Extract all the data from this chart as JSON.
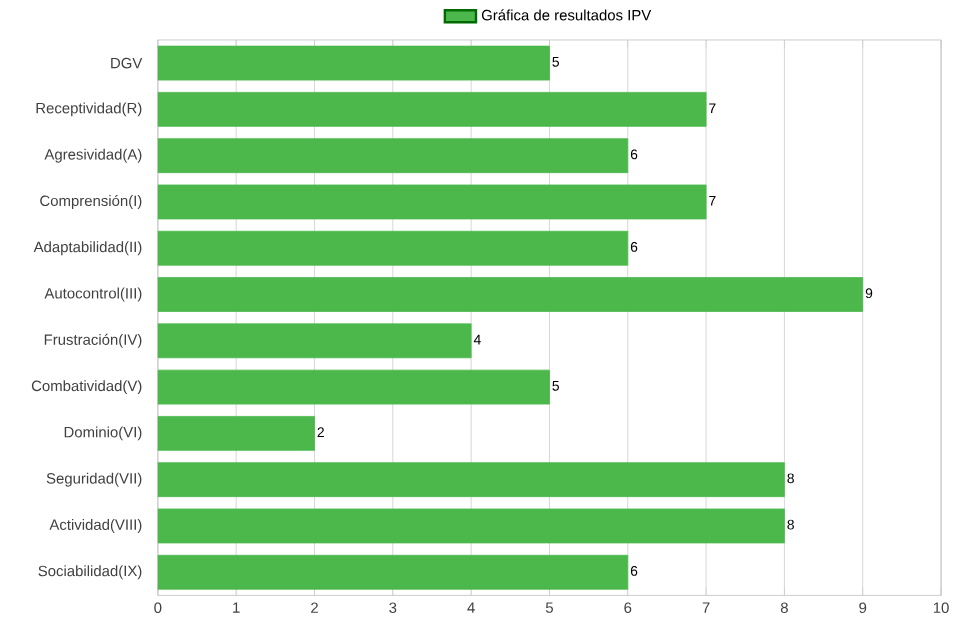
{
  "chart_data": {
    "type": "bar",
    "orientation": "horizontal",
    "categories": [
      "DGV",
      "Receptividad(R)",
      "Agresividad(A)",
      "Comprensión(I)",
      "Adaptabilidad(II)",
      "Autocontrol(III)",
      "Frustración(IV)",
      "Combatividad(V)",
      "Dominio(VI)",
      "Seguridad(VII)",
      "Actividad(VIII)",
      "Sociabilidad(IX)"
    ],
    "series": [
      {
        "name": "Gráfica de resultados IPV",
        "color": "#4cb84c",
        "values": [
          5,
          7,
          6,
          7,
          6,
          9,
          4,
          5,
          2,
          8,
          8,
          6
        ]
      }
    ],
    "xlim": [
      0,
      10
    ],
    "xticks": [
      0,
      1,
      2,
      3,
      4,
      5,
      6,
      7,
      8,
      9,
      10
    ],
    "grid": "x",
    "legend": "top",
    "data_labels": true
  }
}
